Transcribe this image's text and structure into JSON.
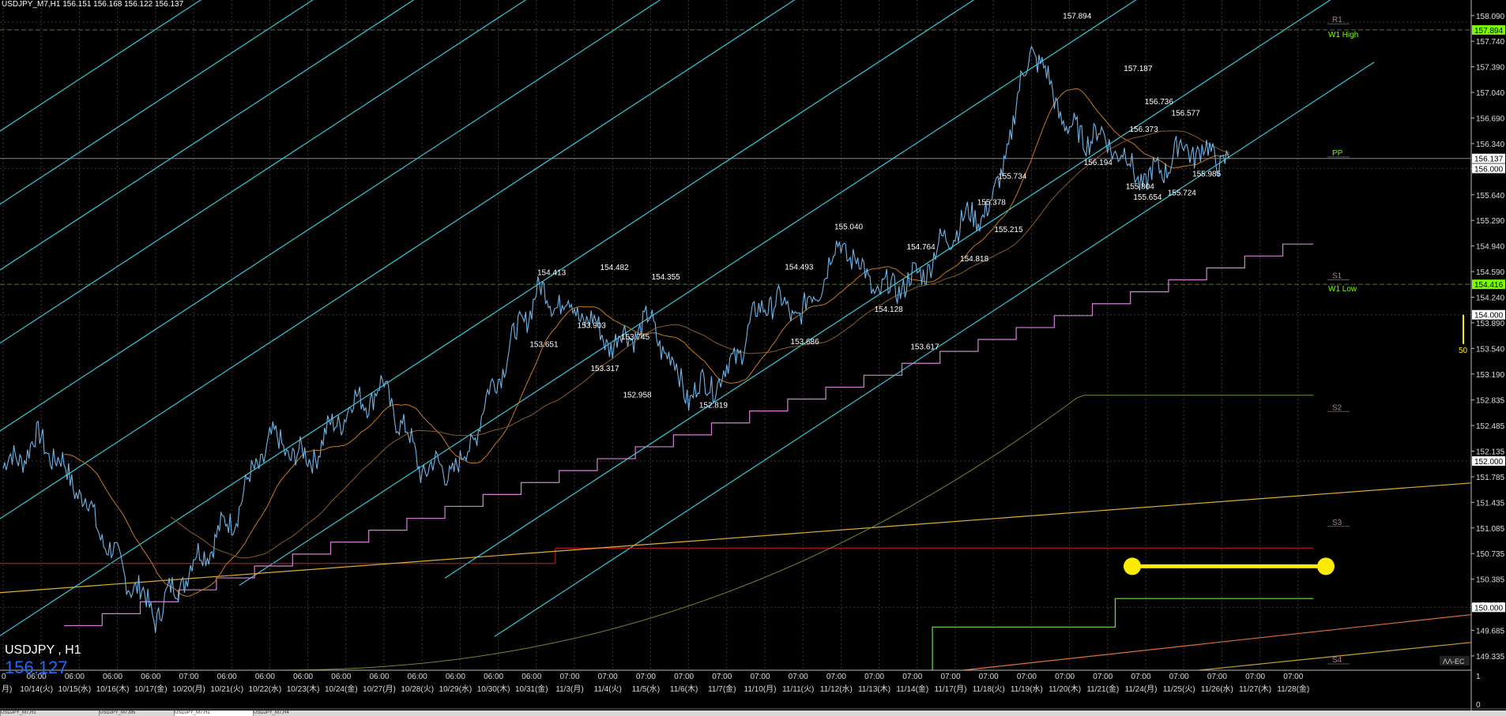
{
  "header": {
    "text": "USDJPY_M7,H1  156.151 156.168 156.122 156.137"
  },
  "symbol_label": "USDJPY , H1",
  "big_price": "156.127",
  "price_axis": {
    "min": 149.0,
    "max": 158.2,
    "ticks": [
      "158.090",
      "157.740",
      "157.390",
      "157.040",
      "156.690",
      "156.340",
      "155.990",
      "155.640",
      "155.290",
      "154.940",
      "154.590",
      "154.240",
      "153.890",
      "153.540",
      "153.190",
      "152.835",
      "152.485",
      "152.135",
      "151.785",
      "151.435",
      "151.085",
      "150.735",
      "150.385",
      "150.035",
      "149.685",
      "149.335"
    ],
    "tick_values": [
      158.09,
      157.74,
      157.39,
      157.04,
      156.69,
      156.34,
      155.99,
      155.64,
      155.29,
      154.94,
      154.59,
      154.24,
      153.89,
      153.54,
      153.19,
      152.835,
      152.485,
      152.135,
      151.785,
      151.435,
      151.085,
      150.735,
      150.385,
      150.035,
      149.685,
      149.335
    ],
    "boxes": [
      {
        "label": "157.894",
        "value": 157.894,
        "bg": "#7cfc00",
        "fg": "#000"
      },
      {
        "label": "156.137",
        "value": 156.137,
        "bg": "#ffffff",
        "fg": "#000"
      },
      {
        "label": "156.000",
        "value": 156.0,
        "bg": "#ffffff",
        "fg": "#000"
      },
      {
        "label": "154.416",
        "value": 154.416,
        "bg": "#7cfc00",
        "fg": "#000"
      },
      {
        "label": "154.000",
        "value": 154.0,
        "bg": "#ffffff",
        "fg": "#000"
      },
      {
        "label": "152.000",
        "value": 152.0,
        "bg": "#ffffff",
        "fg": "#000"
      },
      {
        "label": "150.000",
        "value": 150.0,
        "bg": "#ffffff",
        "fg": "#000"
      }
    ],
    "lower_marks": [
      "0",
      "1"
    ]
  },
  "time_axis": {
    "times": [
      "0",
      "06:00",
      "06:00",
      "06:00",
      "06:00",
      "07:00",
      "06:00",
      "06:00",
      "06:00",
      "06:00",
      "06:00",
      "06:00",
      "06:00",
      "06:00",
      "06:00",
      "07:00",
      "07:00",
      "07:00",
      "07:00",
      "07:00",
      "07:00",
      "07:00",
      "07:00",
      "07:00",
      "07:00",
      "07:00",
      "07:00",
      "07:00",
      "07:00",
      "07:00",
      "07:00",
      "07:00",
      "07:00",
      "07:00",
      "07:00"
    ],
    "dates": [
      "月)",
      "10/14(火)",
      "10/15(水)",
      "10/16(木)",
      "10/17(金)",
      "10/20(月)",
      "10/21(火)",
      "10/22(水)",
      "10/23(木)",
      "10/24(金)",
      "10/27(月)",
      "10/28(火)",
      "10/29(水)",
      "10/30(木)",
      "10/31(金)",
      "11/3(月)",
      "11/4(火)",
      "11/5(水)",
      "11/6(木)",
      "11/7(金)",
      "11/10(月)",
      "11/11(火)",
      "11/12(水)",
      "11/13(木)",
      "11/14(金)",
      "11/17(月)",
      "11/18(火)",
      "11/19(水)",
      "11/20(木)",
      "11/21(金)",
      "11/24(月)",
      "11/25(火)",
      "11/26(水)",
      "11/27(木)",
      "11/28(金)"
    ]
  },
  "pivots": [
    {
      "label": "R1",
      "value": 158.02
    },
    {
      "label": "PP",
      "value": 156.2
    },
    {
      "label": "S1",
      "value": 154.52
    },
    {
      "label": "S2",
      "value": 152.72
    },
    {
      "label": "S3",
      "value": 151.15
    },
    {
      "label": "S4",
      "value": 149.27
    }
  ],
  "w1": [
    {
      "label": "W1 High",
      "value": 157.894,
      "color": "#7cfc00"
    },
    {
      "label": "W1 Low",
      "value": 154.416,
      "color": "#7cfc00"
    }
  ],
  "swing_labels": [
    {
      "t": "157.894",
      "d": 28.2,
      "v": 158.05
    },
    {
      "t": "157.187",
      "d": 29.8,
      "v": 157.33
    },
    {
      "t": "156.736",
      "d": 30.35,
      "v": 156.88
    },
    {
      "t": "156.577",
      "d": 31.05,
      "v": 156.72
    },
    {
      "t": "156.373",
      "d": 29.95,
      "v": 156.5
    },
    {
      "t": "156.194",
      "d": 28.75,
      "v": 156.05
    },
    {
      "t": "155.804",
      "d": 29.85,
      "v": 155.72
    },
    {
      "t": "155.654",
      "d": 30.05,
      "v": 155.57
    },
    {
      "t": "155.724",
      "d": 30.95,
      "v": 155.63
    },
    {
      "t": "155.985",
      "d": 31.6,
      "v": 155.89
    },
    {
      "t": "155.734",
      "d": 26.5,
      "v": 155.86
    },
    {
      "t": "155.378",
      "d": 25.95,
      "v": 155.5
    },
    {
      "t": "155.215",
      "d": 26.4,
      "v": 155.13
    },
    {
      "t": "155.040",
      "d": 22.2,
      "v": 155.17
    },
    {
      "t": "154.764",
      "d": 24.1,
      "v": 154.89
    },
    {
      "t": "154.818",
      "d": 25.5,
      "v": 154.73
    },
    {
      "t": "154.493",
      "d": 20.9,
      "v": 154.62
    },
    {
      "t": "154.413",
      "d": 14.4,
      "v": 154.54
    },
    {
      "t": "154.482",
      "d": 16.05,
      "v": 154.61
    },
    {
      "t": "154.355",
      "d": 17.4,
      "v": 154.48
    },
    {
      "t": "154.128",
      "d": 23.25,
      "v": 154.04
    },
    {
      "t": "153.651",
      "d": 14.2,
      "v": 153.56
    },
    {
      "t": "153.903",
      "d": 15.45,
      "v": 153.82
    },
    {
      "t": "153.745",
      "d": 16.6,
      "v": 153.66
    },
    {
      "t": "153.686",
      "d": 21.05,
      "v": 153.6
    },
    {
      "t": "153.617",
      "d": 24.2,
      "v": 153.53
    },
    {
      "t": "153.317",
      "d": 15.8,
      "v": 153.23
    },
    {
      "t": "152.958",
      "d": 16.65,
      "v": 152.87
    },
    {
      "t": "152.819",
      "d": 18.65,
      "v": 152.73
    }
  ],
  "indicator": {
    "value_label": "50"
  },
  "logo_text": "ΛΛ-EC",
  "tabs": [
    "USDJPY_M7,H1",
    "USDJPY_M7,M5",
    "USDJPY_M7,H1",
    "USDJPY_M7,H4"
  ],
  "chart_data": {
    "type": "line",
    "title": "USDJPY, H1",
    "series": [
      {
        "name": "USDJPY",
        "x": [
          0,
          1,
          2,
          3,
          4,
          5,
          6,
          7,
          8,
          9,
          10,
          11,
          12,
          13,
          14,
          15,
          16,
          17,
          18,
          19,
          20,
          21,
          22,
          23,
          24,
          25,
          26,
          27,
          28,
          29,
          30,
          31,
          32
        ],
        "values": [
          151.9,
          152.3,
          151.6,
          150.6,
          149.9,
          150.6,
          151.2,
          152.3,
          152.0,
          152.7,
          153.0,
          151.9,
          151.9,
          153.2,
          154.3,
          154.1,
          153.6,
          153.9,
          152.9,
          153.2,
          154.2,
          154.0,
          155.0,
          154.3,
          154.5,
          155.2,
          155.5,
          157.7,
          156.5,
          156.4,
          155.8,
          156.3,
          156.14
        ]
      }
    ],
    "ylim": [
      149.0,
      158.2
    ],
    "grid": true
  },
  "colors": {
    "channel": "#33c8d8",
    "price": "#6fb4e8",
    "pink": "#d67fd8",
    "red": "#d21e1e",
    "orange": "#e8a040",
    "green": "#6ee04a",
    "olive": "#8fa040",
    "brown": "#8b5a2b",
    "ma_orange": "#c8781e",
    "yellow": "#ffeb00",
    "grid": "#3a3a3a"
  }
}
